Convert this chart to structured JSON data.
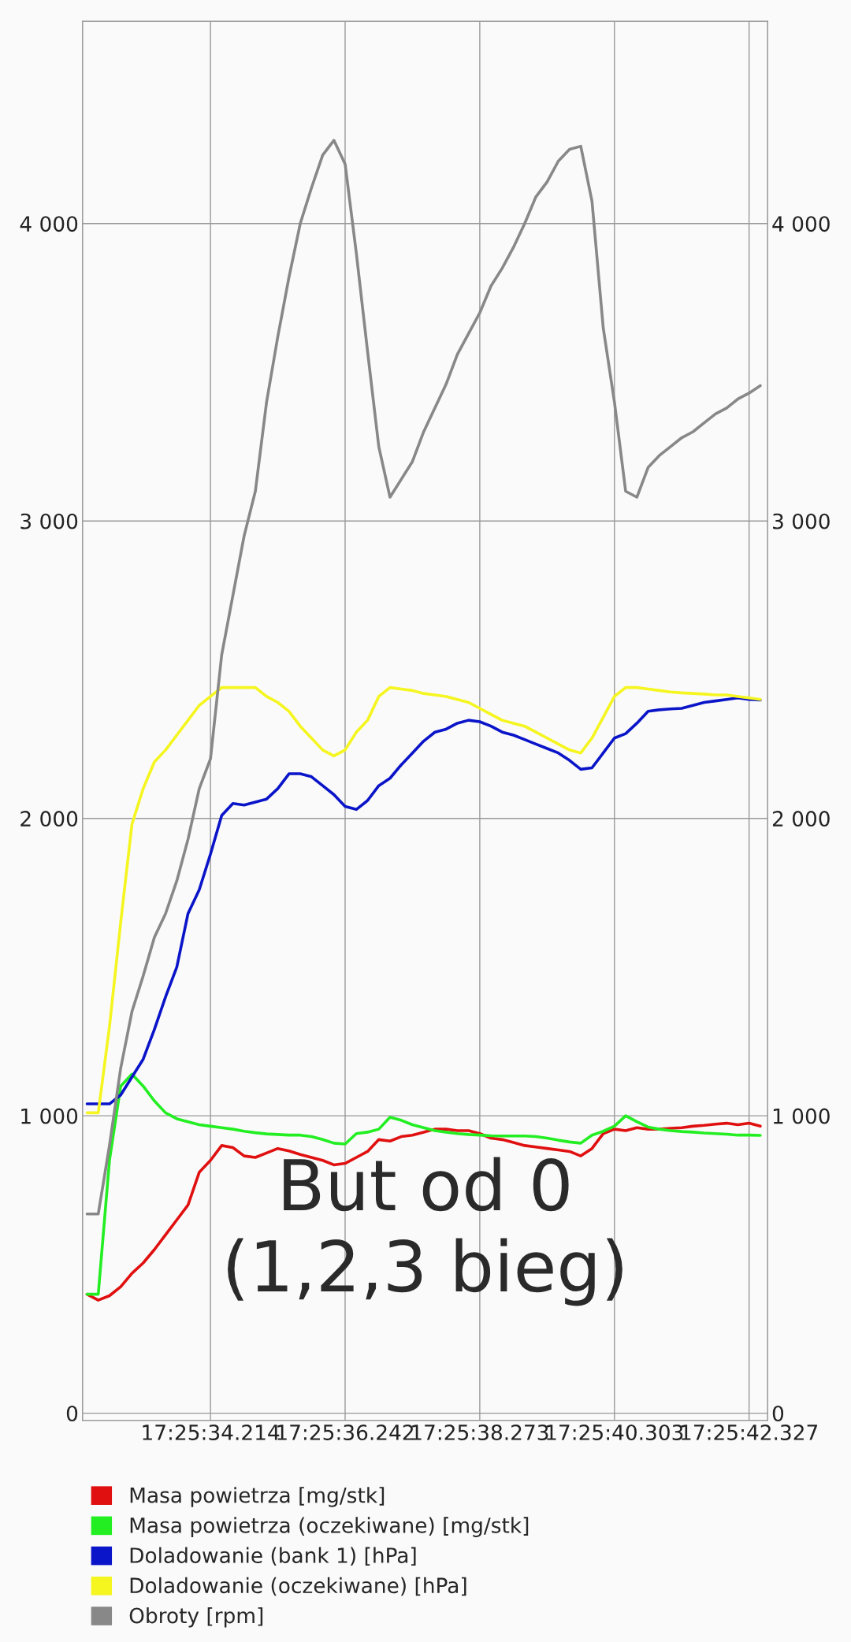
{
  "chart_data": {
    "type": "line",
    "categories": [
      null,
      null,
      null,
      null,
      null,
      null,
      null,
      null,
      null,
      null,
      null,
      "17:25:34.214",
      null,
      null,
      null,
      null,
      null,
      null,
      null,
      null,
      null,
      null,
      null,
      "17:25:36.242",
      null,
      null,
      null,
      null,
      null,
      null,
      null,
      null,
      null,
      null,
      null,
      "17:25:38.273",
      null,
      null,
      null,
      null,
      null,
      null,
      null,
      null,
      null,
      null,
      null,
      "17:25:40.303",
      null,
      null,
      null,
      null,
      null,
      null,
      null,
      null,
      null,
      null,
      null,
      "17:25:42.327",
      null
    ],
    "series": [
      {
        "name": "Masa powietrza [mg/stk]",
        "color": "#e01010",
        "values": [
          400,
          380,
          395,
          425,
          470,
          505,
          550,
          600,
          650,
          700,
          810,
          850,
          900,
          893,
          865,
          860,
          875,
          890,
          882,
          870,
          860,
          850,
          835,
          840,
          860,
          880,
          920,
          915,
          930,
          935,
          945,
          955,
          955,
          950,
          950,
          940,
          925,
          920,
          910,
          900,
          895,
          890,
          885,
          880,
          865,
          890,
          940,
          955,
          950,
          960,
          955,
          955,
          958,
          960,
          965,
          968,
          972,
          975,
          970,
          975,
          965
        ]
      },
      {
        "name": "Masa powietrza (oczekiwane) [mg/stk]",
        "color": "#22ee22",
        "values": [
          400,
          400,
          850,
          1100,
          1140,
          1100,
          1050,
          1010,
          990,
          980,
          970,
          965,
          960,
          955,
          948,
          943,
          939,
          937,
          935,
          935,
          930,
          920,
          908,
          905,
          940,
          945,
          955,
          995,
          985,
          970,
          960,
          950,
          945,
          940,
          937,
          935,
          933,
          932,
          932,
          932,
          930,
          925,
          918,
          912,
          908,
          935,
          948,
          965,
          1000,
          980,
          962,
          955,
          950,
          947,
          945,
          942,
          940,
          938,
          935,
          935,
          934
        ]
      },
      {
        "name": "Doladowanie (bank 1) [hPa]",
        "color": "#0a14c8",
        "values": [
          1040,
          1040,
          1040,
          1070,
          1130,
          1190,
          1290,
          1400,
          1500,
          1680,
          1760,
          1880,
          2010,
          2050,
          2045,
          2055,
          2065,
          2100,
          2150,
          2150,
          2140,
          2110,
          2080,
          2040,
          2030,
          2060,
          2110,
          2135,
          2180,
          2220,
          2260,
          2290,
          2300,
          2320,
          2330,
          2325,
          2310,
          2290,
          2280,
          2265,
          2250,
          2235,
          2220,
          2195,
          2165,
          2170,
          2220,
          2270,
          2285,
          2320,
          2360,
          2365,
          2368,
          2370,
          2380,
          2390,
          2395,
          2400,
          2405,
          2400,
          2398
        ]
      },
      {
        "name": "Doladowanie (oczekiwane) [hPa]",
        "color": "#f5f520",
        "values": [
          1010,
          1010,
          1300,
          1650,
          1980,
          2100,
          2190,
          2230,
          2280,
          2330,
          2380,
          2410,
          2440,
          2440,
          2440,
          2440,
          2410,
          2390,
          2360,
          2310,
          2270,
          2230,
          2210,
          2230,
          2290,
          2330,
          2410,
          2440,
          2435,
          2430,
          2420,
          2415,
          2410,
          2400,
          2390,
          2370,
          2350,
          2330,
          2320,
          2310,
          2290,
          2270,
          2250,
          2230,
          2220,
          2270,
          2340,
          2410,
          2440,
          2440,
          2435,
          2430,
          2425,
          2422,
          2420,
          2418,
          2415,
          2415,
          2410,
          2405,
          2400
        ]
      },
      {
        "name": "Obroty [rpm]",
        "color": "#888888",
        "values": [
          670,
          670,
          900,
          1160,
          1350,
          1470,
          1600,
          1680,
          1790,
          1930,
          2100,
          2200,
          2550,
          2750,
          2950,
          3100,
          3400,
          3620,
          3820,
          4000,
          4120,
          4230,
          4280,
          4200,
          3900,
          3570,
          3250,
          3080,
          3140,
          3200,
          3300,
          3380,
          3460,
          3560,
          3630,
          3700,
          3790,
          3850,
          3920,
          4000,
          4090,
          4140,
          4210,
          4250,
          4260,
          4075,
          3650,
          3400,
          3100,
          3080,
          3180,
          3220,
          3250,
          3280,
          3300,
          3330,
          3360,
          3380,
          3410,
          3430,
          3455
        ]
      }
    ],
    "ylim": [
      -24,
      4680
    ],
    "yticks": [
      0,
      {
        "value": 1000,
        "label": "1 000"
      },
      {
        "value": 2000,
        "label": "2 000"
      },
      {
        "value": 3000,
        "label": "3 000"
      },
      {
        "value": 4000,
        "label": "4 000"
      }
    ],
    "y2lim": [
      -24,
      4680
    ],
    "y2ticks": [
      0,
      {
        "value": 1000,
        "label": "1 000"
      },
      {
        "value": 2000,
        "label": "2 000"
      },
      {
        "value": 3000,
        "label": "3 000"
      },
      {
        "value": 4000,
        "label": "4 000"
      }
    ],
    "grid": true,
    "legend": "bottom",
    "marker": "none",
    "line_style": "solid",
    "annotations": [
      "But od 0\n(1,2,3 bieg)"
    ]
  }
}
